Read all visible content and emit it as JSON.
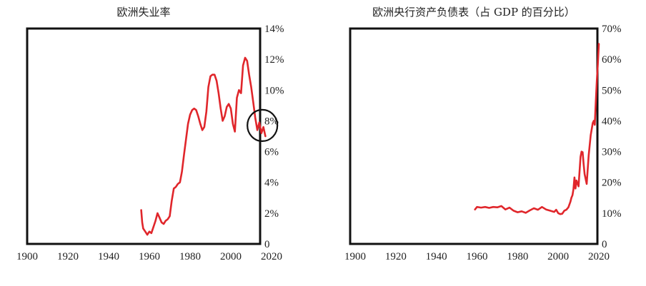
{
  "charts": [
    {
      "title": "欧洲失业率"
    },
    {
      "title": "欧洲央行资产负债表（占 GDP 的百分比）"
    }
  ],
  "colors": {
    "series": "#e0262b",
    "axis": "#111111",
    "circle": "#111111"
  },
  "chart_data": [
    {
      "type": "line",
      "title": "欧洲失业率",
      "xlabel": "",
      "ylabel": "",
      "xlim": [
        1900,
        2020
      ],
      "ylim": [
        0,
        14
      ],
      "x_ticks": [
        1900,
        1920,
        1940,
        1960,
        1980,
        2000,
        2020
      ],
      "y_ticks": [
        0,
        2,
        4,
        6,
        8,
        10,
        12,
        14
      ],
      "y_tick_labels": [
        "0",
        "2%",
        "4%",
        "6%",
        "8%",
        "10%",
        "12%",
        "14%"
      ],
      "grid": false,
      "annotation": {
        "type": "circle",
        "x": 2015.5,
        "y": 7.7
      },
      "series": [
        {
          "x": [
            1956,
            1956.5,
            1957,
            1958,
            1959,
            1960,
            1961,
            1962,
            1963,
            1964,
            1965,
            1966,
            1967,
            1968,
            1969,
            1970,
            1971,
            1972,
            1973,
            1974,
            1975,
            1976,
            1977,
            1978,
            1979,
            1980,
            1981,
            1982,
            1983,
            1984,
            1985,
            1986,
            1987,
            1988,
            1989,
            1990,
            1991,
            1992,
            1993,
            1994,
            1995,
            1996,
            1997,
            1998,
            1999,
            2000,
            2001,
            2002,
            2003,
            2004,
            2005,
            2006,
            2007,
            2008,
            2009,
            2010,
            2011,
            2012,
            2013,
            2014,
            2015,
            2016,
            2017
          ],
          "y": [
            2.2,
            1.4,
            1.0,
            0.8,
            0.6,
            0.8,
            0.7,
            1.1,
            1.5,
            2.0,
            1.7,
            1.4,
            1.3,
            1.5,
            1.6,
            1.8,
            2.8,
            3.6,
            3.7,
            3.9,
            4.0,
            4.7,
            5.8,
            6.8,
            7.8,
            8.4,
            8.7,
            8.8,
            8.7,
            8.3,
            7.8,
            7.4,
            7.6,
            8.6,
            10.2,
            10.9,
            11.0,
            11.0,
            10.6,
            9.8,
            8.8,
            8.0,
            8.3,
            8.9,
            9.1,
            8.8,
            7.8,
            7.3,
            9.5,
            10.0,
            9.8,
            11.6,
            12.1,
            11.9,
            11.0,
            10.2,
            9.2,
            8.2,
            7.4,
            7.9,
            7.2,
            7.6,
            7.0
          ]
        }
      ]
    },
    {
      "type": "line",
      "title": "欧洲央行资产负债表（占 GDP 的百分比）",
      "xlabel": "",
      "ylabel": "",
      "xlim": [
        1900,
        2020
      ],
      "ylim": [
        0,
        70
      ],
      "x_ticks": [
        1900,
        1920,
        1940,
        1960,
        1980,
        2000,
        2020
      ],
      "y_ticks": [
        0,
        10,
        20,
        30,
        40,
        50,
        60,
        70
      ],
      "y_tick_labels": [
        "0",
        "10%",
        "20%",
        "30%",
        "40%",
        "50%",
        "60%",
        "70%"
      ],
      "grid": false,
      "series": [
        {
          "x": [
            1959,
            1960,
            1962,
            1964,
            1966,
            1968,
            1970,
            1972,
            1974,
            1976,
            1978,
            1980,
            1982,
            1984,
            1986,
            1988,
            1990,
            1992,
            1994,
            1996,
            1998,
            1999,
            2000,
            2001,
            2002,
            2003,
            2004,
            2005,
            2006,
            2006.5,
            2007,
            2007.5,
            2008,
            2008.5,
            2009,
            2010,
            2011,
            2011.5,
            2012,
            2012.5,
            2013,
            2014,
            2015,
            2016,
            2017,
            2017.5,
            2018,
            2018.5,
            2019,
            2019.5,
            2020
          ],
          "y": [
            11.2,
            12.0,
            11.8,
            12.0,
            11.7,
            12.0,
            11.9,
            12.3,
            11.2,
            11.8,
            10.8,
            10.3,
            10.6,
            10.1,
            10.9,
            11.6,
            11.1,
            12.0,
            11.2,
            10.8,
            10.4,
            11.1,
            10.0,
            9.7,
            9.8,
            10.8,
            11.1,
            11.9,
            13.7,
            15.0,
            15.8,
            17.8,
            21.6,
            18.0,
            20.6,
            18.7,
            28.3,
            30.0,
            29.8,
            26.0,
            22.7,
            19.5,
            28.8,
            35.3,
            39.3,
            40.0,
            38.7,
            46.0,
            53.0,
            58.5,
            65.0
          ]
        }
      ]
    }
  ]
}
